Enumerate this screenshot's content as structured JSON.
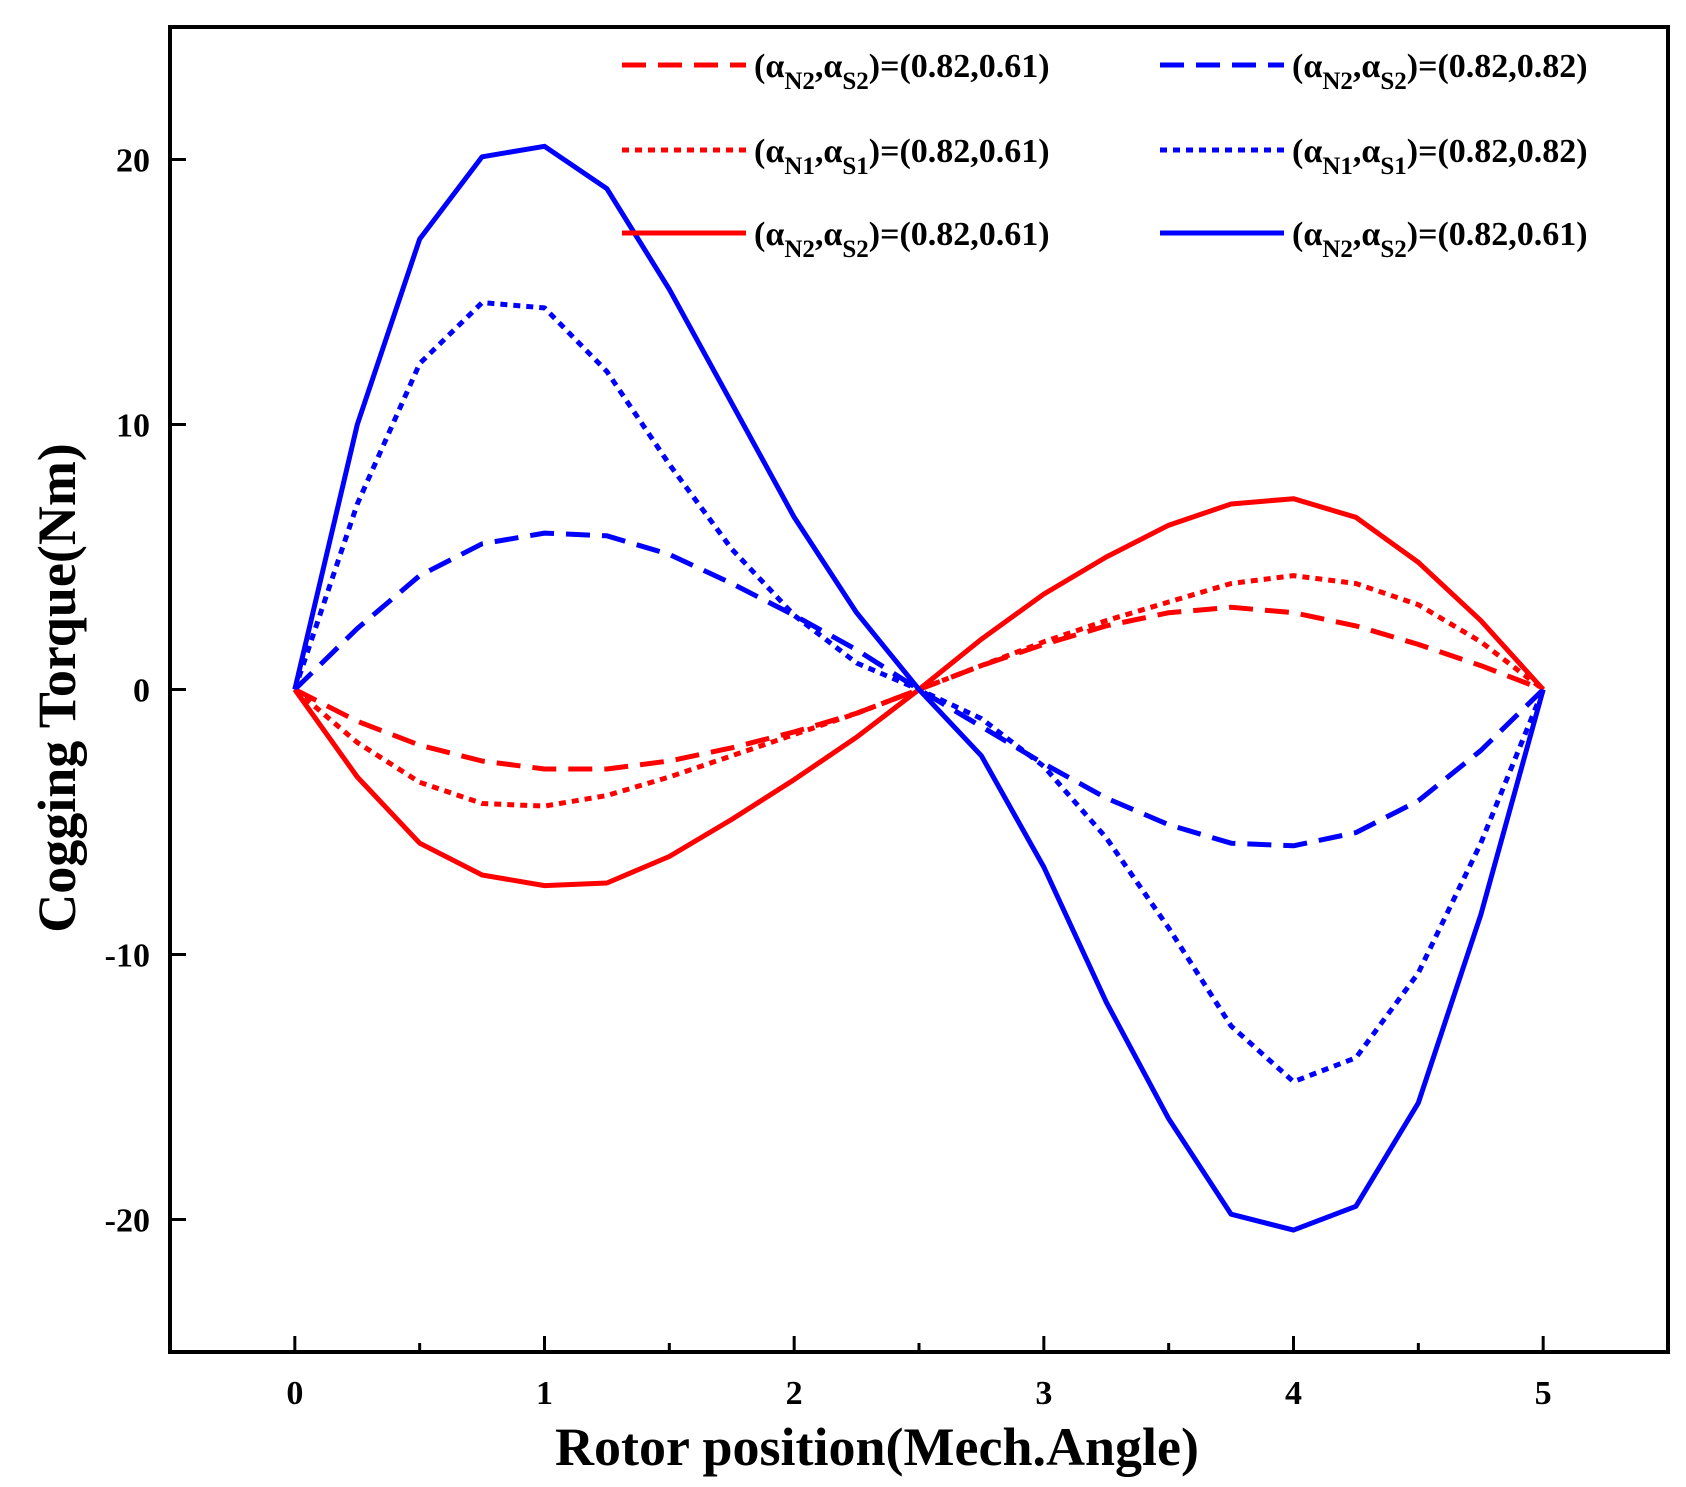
{
  "chart_data": {
    "type": "line",
    "title": "",
    "xlabel": "Rotor position(Mech.Angle)",
    "ylabel": "Cogging Torque(Nm)",
    "xlim": [
      -0.5,
      5.5
    ],
    "ylim": [
      -25,
      25
    ],
    "xticks": [
      0,
      1,
      2,
      3,
      4,
      5
    ],
    "xtick_labels": [
      "0",
      "1",
      "2",
      "3",
      "4",
      "5"
    ],
    "yticks": [
      -20,
      -10,
      0,
      10,
      20
    ],
    "ytick_labels": [
      "-20",
      "-10",
      "0",
      "10",
      "20"
    ],
    "grid": false,
    "legend_position": "top-right",
    "x": [
      0,
      0.25,
      0.5,
      0.75,
      1.0,
      1.25,
      1.5,
      1.75,
      2.0,
      2.25,
      2.5,
      2.75,
      3.0,
      3.25,
      3.5,
      3.75,
      4.0,
      4.25,
      4.5,
      4.75,
      5.0
    ],
    "series": [
      {
        "name": "red-dashed",
        "legend": {
          "sub_a": "N2",
          "sub_b": "S2",
          "values": "=(0.82,0.61)"
        },
        "color": "#ff0000",
        "style": "dashed",
        "values": [
          0,
          -1.2,
          -2.1,
          -2.7,
          -3.0,
          -3.0,
          -2.7,
          -2.2,
          -1.6,
          -0.9,
          0,
          0.9,
          1.7,
          2.4,
          2.9,
          3.1,
          2.9,
          2.4,
          1.7,
          0.9,
          0
        ]
      },
      {
        "name": "blue-dashed",
        "legend": {
          "sub_a": "N2",
          "sub_b": "S2",
          "values": "=(0.82,0.82)"
        },
        "color": "#0000ff",
        "style": "dashed",
        "values": [
          0,
          2.3,
          4.3,
          5.5,
          5.9,
          5.8,
          5.1,
          4.0,
          2.8,
          1.5,
          0,
          -1.4,
          -2.8,
          -4.1,
          -5.1,
          -5.8,
          -5.9,
          -5.4,
          -4.2,
          -2.3,
          0
        ]
      },
      {
        "name": "red-dotted",
        "legend": {
          "sub_a": "N1",
          "sub_b": "S1",
          "values": "=(0.82,0.61)"
        },
        "color": "#ff0000",
        "style": "dotted",
        "values": [
          0,
          -2.0,
          -3.5,
          -4.3,
          -4.4,
          -4.0,
          -3.3,
          -2.5,
          -1.7,
          -0.9,
          0,
          0.9,
          1.8,
          2.6,
          3.3,
          4.0,
          4.3,
          4.0,
          3.2,
          1.8,
          0
        ]
      },
      {
        "name": "blue-dotted",
        "legend": {
          "sub_a": "N1",
          "sub_b": "S1",
          "values": "=(0.82,0.82)"
        },
        "color": "#0000ff",
        "style": "dotted",
        "values": [
          0,
          7.0,
          12.3,
          14.6,
          14.4,
          12.0,
          8.5,
          5.3,
          2.8,
          1.0,
          0,
          -1.1,
          -2.9,
          -5.6,
          -9.0,
          -12.7,
          -14.8,
          -13.9,
          -10.7,
          -5.8,
          0
        ]
      },
      {
        "name": "red-solid",
        "legend": {
          "sub_a": "N2",
          "sub_b": "S2",
          "values": "=(0.82,0.61)"
        },
        "color": "#ff0000",
        "style": "solid",
        "values": [
          0,
          -3.3,
          -5.8,
          -7.0,
          -7.4,
          -7.3,
          -6.3,
          -4.9,
          -3.4,
          -1.8,
          0,
          1.9,
          3.6,
          5.0,
          6.2,
          7.0,
          7.2,
          6.5,
          4.8,
          2.6,
          0
        ]
      },
      {
        "name": "blue-solid",
        "legend": {
          "sub_a": "N2",
          "sub_b": "S2",
          "values": "=(0.82,0.61)"
        },
        "color": "#0000ff",
        "style": "solid",
        "values": [
          0,
          10.0,
          17.0,
          20.1,
          20.5,
          18.9,
          15.1,
          10.8,
          6.5,
          2.9,
          0,
          -2.5,
          -6.7,
          -11.8,
          -16.2,
          -19.8,
          -20.4,
          -19.5,
          -15.6,
          -8.5,
          0
        ]
      }
    ]
  }
}
